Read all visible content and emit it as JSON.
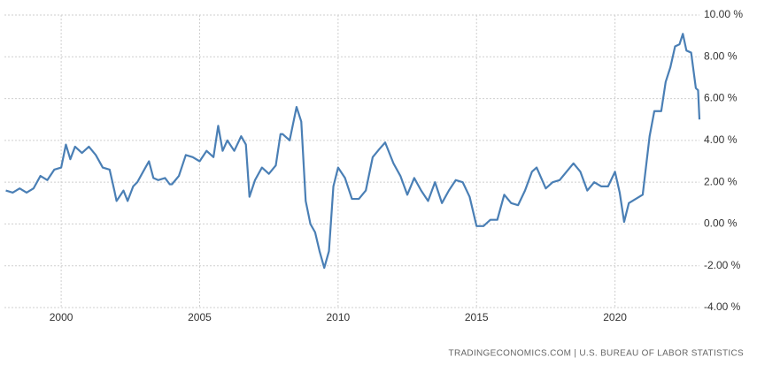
{
  "chart_data": {
    "type": "line",
    "source": "TRADINGECONOMICS.COM | U.S. BUREAU OF LABOR STATISTICS",
    "color": "#4a7fb5",
    "grid": true,
    "xlim": [
      1997.95,
      2023.05
    ],
    "xticks": [
      2000,
      2005,
      2010,
      2015,
      2020
    ],
    "ylim": [
      -4,
      10
    ],
    "yticks": [
      {
        "value": -4,
        "label": "-4.00 %"
      },
      {
        "value": -2,
        "label": "-2.00 %"
      },
      {
        "value": 0,
        "label": "0.00 %"
      },
      {
        "value": 2,
        "label": "2.00 %"
      },
      {
        "value": 4,
        "label": "4.00 %"
      },
      {
        "value": 6,
        "label": "6.00 %"
      },
      {
        "value": 8,
        "label": "8.00 %"
      },
      {
        "value": 10,
        "label": "10.00 %"
      }
    ],
    "x": [
      1998.0,
      1998.25,
      1998.5,
      1998.75,
      1999.0,
      1999.25,
      1999.5,
      1999.75,
      2000.0,
      2000.17,
      2000.33,
      2000.5,
      2000.75,
      2001.0,
      2001.25,
      2001.5,
      2001.75,
      2001.92,
      2002.0,
      2002.25,
      2002.4,
      2002.6,
      2002.75,
      2003.0,
      2003.17,
      2003.33,
      2003.5,
      2003.75,
      2003.92,
      2004.0,
      2004.25,
      2004.5,
      2004.75,
      2005.0,
      2005.25,
      2005.5,
      2005.67,
      2005.83,
      2006.0,
      2006.25,
      2006.5,
      2006.67,
      2006.8,
      2007.0,
      2007.25,
      2007.5,
      2007.75,
      2007.92,
      2008.0,
      2008.25,
      2008.5,
      2008.67,
      2008.83,
      2009.0,
      2009.17,
      2009.33,
      2009.5,
      2009.67,
      2009.83,
      2010.0,
      2010.25,
      2010.5,
      2010.75,
      2011.0,
      2011.25,
      2011.5,
      2011.7,
      2012.0,
      2012.25,
      2012.5,
      2012.75,
      2013.0,
      2013.25,
      2013.5,
      2013.75,
      2014.0,
      2014.25,
      2014.5,
      2014.75,
      2015.0,
      2015.25,
      2015.5,
      2015.75,
      2016.0,
      2016.25,
      2016.5,
      2016.75,
      2017.0,
      2017.17,
      2017.5,
      2017.75,
      2018.0,
      2018.25,
      2018.5,
      2018.75,
      2019.0,
      2019.25,
      2019.5,
      2019.75,
      2020.0,
      2020.17,
      2020.33,
      2020.5,
      2020.75,
      2021.0,
      2021.25,
      2021.42,
      2021.67,
      2021.83,
      2022.0,
      2022.17,
      2022.33,
      2022.45,
      2022.58,
      2022.75,
      2022.92,
      2023.0,
      2023.05
    ],
    "series": [
      {
        "values": [
          1.6,
          1.5,
          1.7,
          1.5,
          1.7,
          2.3,
          2.1,
          2.6,
          2.7,
          3.8,
          3.1,
          3.7,
          3.4,
          3.7,
          3.3,
          2.7,
          2.6,
          1.6,
          1.1,
          1.6,
          1.1,
          1.8,
          2.0,
          2.6,
          3.0,
          2.2,
          2.1,
          2.2,
          1.9,
          1.9,
          2.3,
          3.3,
          3.2,
          3.0,
          3.5,
          3.2,
          4.7,
          3.5,
          4.0,
          3.5,
          4.2,
          3.8,
          1.3,
          2.1,
          2.7,
          2.4,
          2.8,
          4.3,
          4.3,
          4.0,
          5.6,
          4.9,
          1.1,
          0.0,
          -0.4,
          -1.3,
          -2.1,
          -1.3,
          1.8,
          2.7,
          2.2,
          1.2,
          1.2,
          1.6,
          3.2,
          3.6,
          3.9,
          2.9,
          2.3,
          1.4,
          2.2,
          1.6,
          1.1,
          2.0,
          1.0,
          1.6,
          2.1,
          2.0,
          1.3,
          -0.1,
          -0.1,
          0.2,
          0.2,
          1.4,
          1.0,
          0.9,
          1.6,
          2.5,
          2.7,
          1.7,
          2.0,
          2.1,
          2.5,
          2.9,
          2.5,
          1.6,
          2.0,
          1.8,
          1.8,
          2.5,
          1.5,
          0.1,
          1.0,
          1.2,
          1.4,
          4.2,
          5.4,
          5.4,
          6.8,
          7.5,
          8.5,
          8.6,
          9.1,
          8.3,
          8.2,
          6.5,
          6.4,
          5.0
        ]
      }
    ]
  }
}
